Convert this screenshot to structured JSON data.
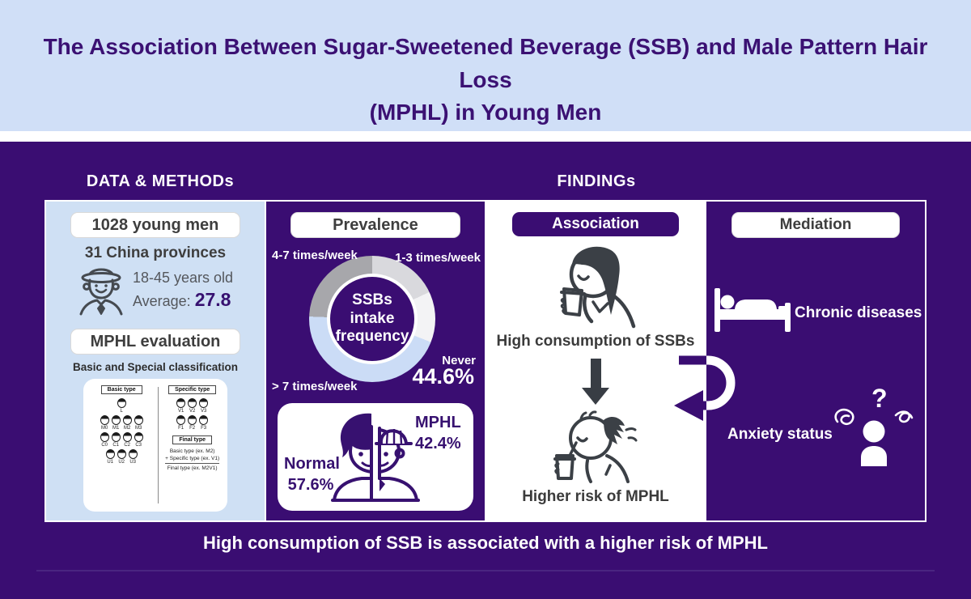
{
  "title": {
    "lines": [
      "The Association Between Sugar-Sweetened Beverage (SSB) and Male Pattern Hair Loss",
      "(MPHL) in Young Men"
    ]
  },
  "sections": {
    "data_methods": "DATA & METHODs",
    "findings": "FINDINGs"
  },
  "panels": {
    "cohort": {
      "sample_box": "1028 young men",
      "provinces": "31 China provinces",
      "age_range": "18-45 years old",
      "average_label": "Average:",
      "average_value": "27.8",
      "evaluation_box": "MPHL evaluation",
      "classification_note": "Basic and Special classification",
      "figure": {
        "basic_label": "Basic type",
        "specific_label": "Specific type",
        "final_label": "Final type",
        "basic_rows": [
          [
            "L"
          ],
          [
            "M0",
            "M1",
            "M2",
            "M3"
          ],
          [
            "C0",
            "C1",
            "C2",
            "C3"
          ],
          [
            "U1",
            "U2",
            "U3"
          ]
        ],
        "specific_rows": [
          [
            "V1",
            "V2",
            "V3"
          ],
          [
            "F1",
            "F2",
            "F3"
          ]
        ],
        "final_lines": [
          "Basic type  (ex. M2)",
          "+ Specific type  (ex. V1)",
          "Final type  (ex. M2V1)"
        ]
      }
    },
    "prevalence": {
      "header": "Prevalence",
      "donut_center": [
        "SSBs",
        "intake",
        "frequency"
      ],
      "highlight_value": "44.6%",
      "mphl_box": {
        "normal_label": "Normal",
        "normal_value": "57.6%",
        "mphl_label": "MPHL",
        "mphl_value": "42.4%"
      }
    },
    "association": {
      "header": "Association",
      "cause": "High consumption of SSBs",
      "effect": "Higher risk of MPHL"
    },
    "mediation": {
      "header": "Mediation",
      "mediators": [
        "Chronic diseases",
        "Anxiety status"
      ],
      "question_mark": "?"
    }
  },
  "conclusion": "High consumption of SSB is associated with a higher risk of MPHL",
  "colors": {
    "background_purple": "#3a0d72",
    "title_band_blue": "#d0dff7",
    "title_text_purple": "#3b1173",
    "cohort_panel_blue": "#cfe0f4",
    "icon_charcoal": "#3b4046",
    "accent_purple": "#371170"
  },
  "chart_data": [
    {
      "type": "pie",
      "donut": true,
      "title": "SSBs intake frequency",
      "start_angle_deg": 0,
      "direction": "clockwise",
      "unit": "%",
      "labels": [
        "1-3 times/week",
        "Never",
        "> 7 times/week",
        "4-7 times/week"
      ],
      "values": [
        18,
        13,
        44.6,
        24.4
      ],
      "annotated_value": "44.6%",
      "slices": [
        {
          "label": "1-3 times/week",
          "value": 18,
          "color": "#d9d9dd"
        },
        {
          "label": "Never",
          "value": 13,
          "color": "#f3f3f5"
        },
        {
          "label": "> 7 times/week",
          "value": 44.6,
          "color": "#cbdcf6"
        },
        {
          "label": "4-7 times/week",
          "value": 24.4,
          "color": "#a7a7ab"
        }
      ]
    },
    {
      "type": "pie",
      "title": "MPHL prevalence",
      "labels": [
        "Normal",
        "MPHL"
      ],
      "values": [
        57.6,
        42.4
      ],
      "unit": "%"
    }
  ]
}
